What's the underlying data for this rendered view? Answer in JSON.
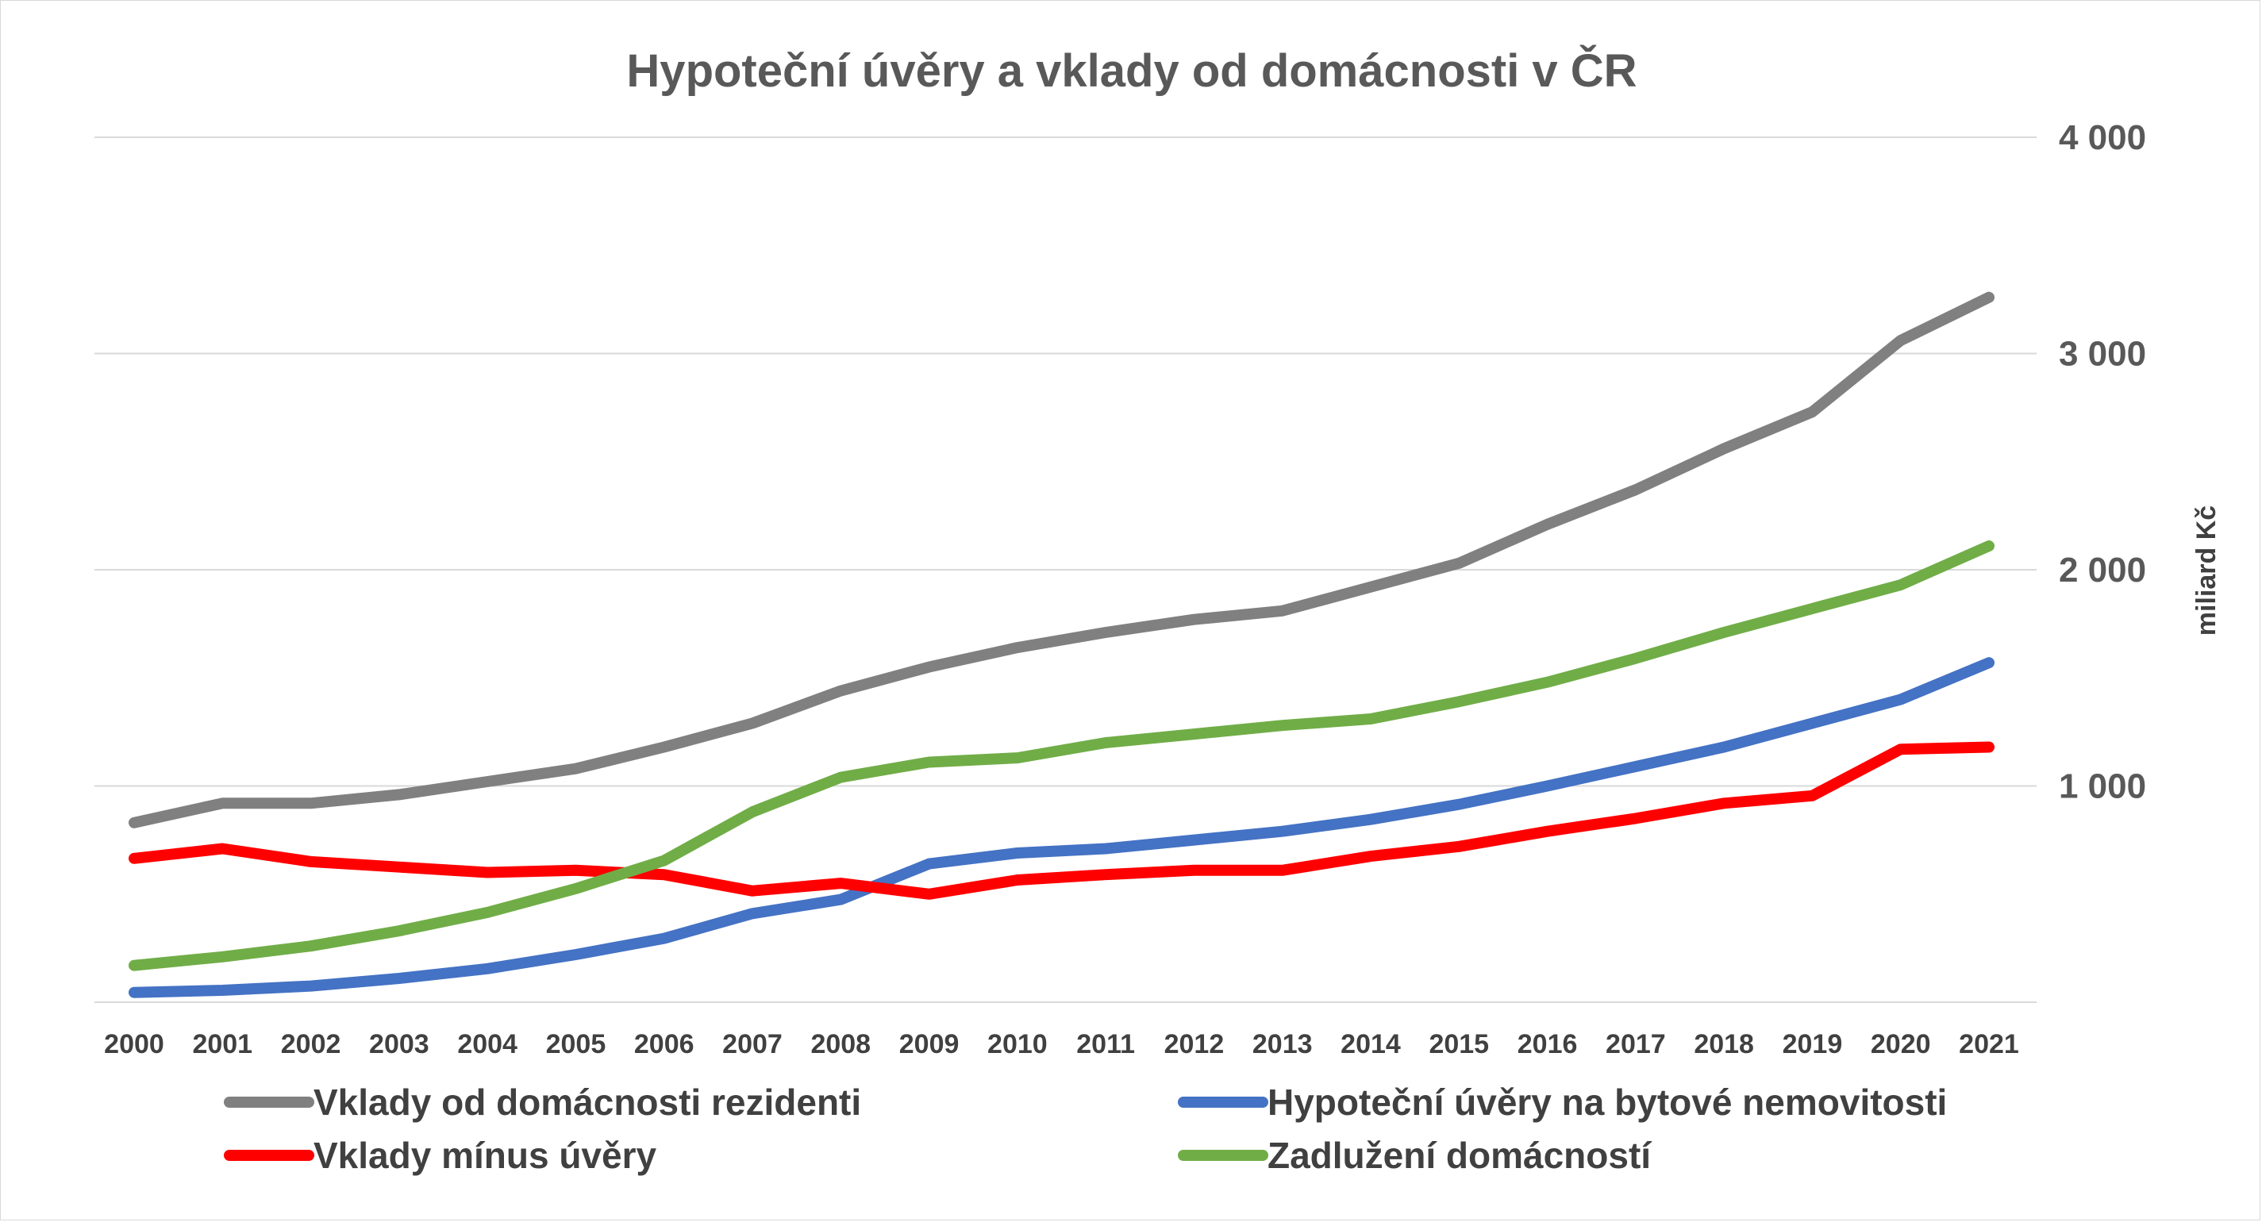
{
  "chart_data": {
    "type": "line",
    "title": "Hypoteční úvěry a vklady od domácnosti v ČR",
    "xlabel": "",
    "ylabel": "miliard Kč",
    "ylim": [
      0,
      4000
    ],
    "y_ticks": [
      1000,
      2000,
      3000,
      4000
    ],
    "y_tick_labels": [
      "1 000",
      "2 000",
      "3 000",
      "4 000"
    ],
    "y_axis_side": "right",
    "grid": true,
    "legend_position": "bottom",
    "categories": [
      "2000",
      "2001",
      "2002",
      "2003",
      "2004",
      "2005",
      "2006",
      "2007",
      "2008",
      "2009",
      "2010",
      "2011",
      "2012",
      "2013",
      "2014",
      "2015",
      "2016",
      "2017",
      "2018",
      "2019",
      "2020",
      "2021"
    ],
    "series": [
      {
        "name": "Vklady od domácnosti rezidenti",
        "color": "#808080",
        "values": [
          830,
          920,
          920,
          960,
          1020,
          1080,
          1180,
          1290,
          1440,
          1550,
          1640,
          1710,
          1770,
          1810,
          1920,
          2030,
          2210,
          2370,
          2560,
          2730,
          3060,
          3260
        ]
      },
      {
        "name": "Hypoteční úvěry na bytové nemovitosti",
        "color": "#4472C4",
        "values": [
          45,
          55,
          75,
          110,
          155,
          220,
          295,
          410,
          475,
          640,
          690,
          710,
          750,
          790,
          845,
          915,
          1000,
          1090,
          1180,
          1290,
          1400,
          1570
        ]
      },
      {
        "name": "Vklady mínus úvěry",
        "color": "#FF0000",
        "values": [
          665,
          710,
          650,
          625,
          600,
          610,
          590,
          515,
          550,
          500,
          565,
          590,
          610,
          610,
          675,
          720,
          790,
          850,
          920,
          955,
          1170,
          1180
        ]
      },
      {
        "name": "Zadlužení domácností",
        "color": "#70AD47",
        "values": [
          170,
          210,
          260,
          330,
          415,
          525,
          655,
          880,
          1040,
          1110,
          1130,
          1200,
          1240,
          1280,
          1310,
          1390,
          1480,
          1590,
          1710,
          1820,
          1930,
          2110
        ]
      }
    ]
  }
}
